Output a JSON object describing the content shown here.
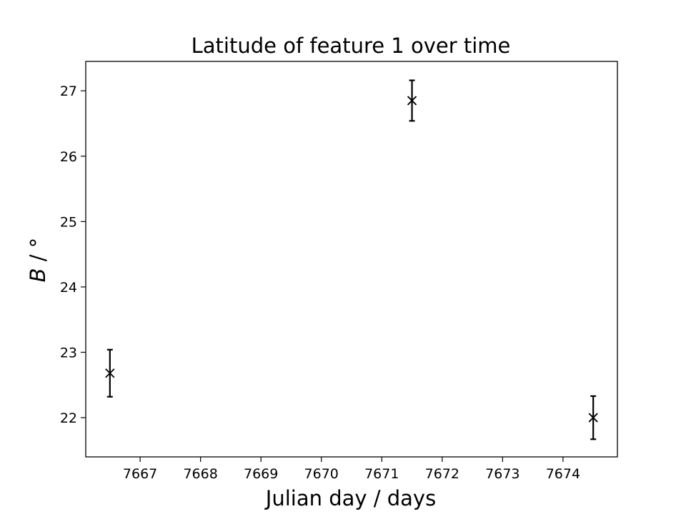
{
  "chart_data": {
    "type": "scatter",
    "title": "Latitude of feature 1 over time",
    "xlabel": "Julian day / days",
    "ylabel_symbol": "B",
    "ylabel_unit": " / °",
    "xlim": [
      7666.1,
      7674.9
    ],
    "ylim": [
      21.4,
      27.45
    ],
    "xticks": [
      7667,
      7668,
      7669,
      7670,
      7671,
      7672,
      7673,
      7674
    ],
    "yticks": [
      22,
      23,
      24,
      25,
      26,
      27
    ],
    "marker": "x",
    "color": "#000000",
    "grid": false,
    "series": [
      {
        "points": [
          {
            "x": 7666.5,
            "y": 22.68,
            "yerr": 0.36
          },
          {
            "x": 7671.5,
            "y": 26.85,
            "yerr": 0.31
          },
          {
            "x": 7674.5,
            "y": 22.0,
            "yerr": 0.33
          }
        ]
      }
    ]
  }
}
